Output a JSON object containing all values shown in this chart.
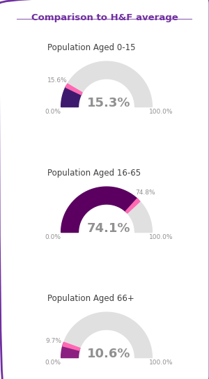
{
  "title": "Comparison to H&F average",
  "title_color": "#7030A0",
  "background_color": "#ffffff",
  "border_color": "#7030A0",
  "groups": [
    {
      "label": "Population Aged 0-15",
      "ward_value": 15.3,
      "hf_value": 15.6,
      "center_text": "15.3%",
      "hf_label": "15.6%",
      "ward_color": "#3D1A6E"
    },
    {
      "label": "Population Aged 16-65",
      "ward_value": 74.1,
      "hf_value": 74.8,
      "center_text": "74.1%",
      "hf_label": "74.8%",
      "ward_color": "#5B0060"
    },
    {
      "label": "Population Aged 66+",
      "ward_value": 10.6,
      "hf_value": 9.7,
      "center_text": "10.6%",
      "hf_label": "9.7%",
      "ward_color": "#8B2080"
    }
  ],
  "arc_bg_color": "#e0e0e0",
  "arc_hf_color": "#FF69B4",
  "label_color": "#909090",
  "center_text_color": "#909090",
  "group_label_color": "#404040"
}
